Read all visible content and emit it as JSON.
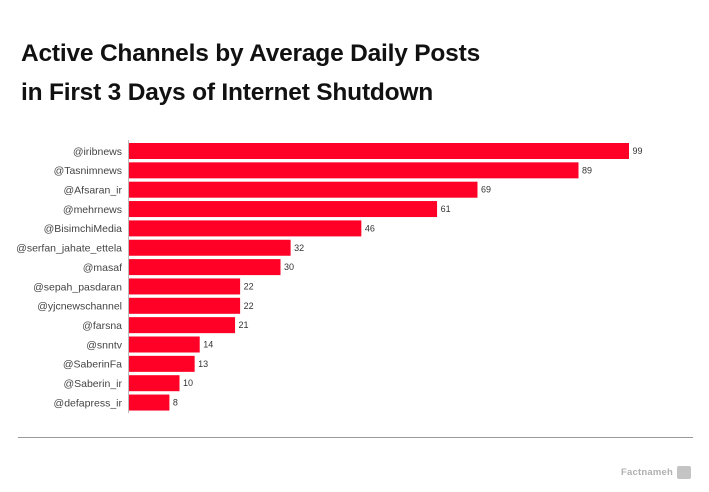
{
  "chart_data": {
    "type": "bar",
    "orientation": "horizontal",
    "title": "Active Channels by Average Daily Posts\nin First 3 Days of Internet Shutdown",
    "title_lines": [
      "Active Channels by Average Daily Posts",
      "in First 3 Days of Internet Shutdown"
    ],
    "categories": [
      "@iribnews",
      "@Tasnimnews",
      "@Afsaran_ir",
      "@mehrnews",
      "@BisimchiMedia",
      "@serfan_jahate_ettela",
      "@masaf",
      "@sepah_pasdaran",
      "@yjcnewschannel",
      "@farsna",
      "@snntv",
      "@SaberinFa",
      "@Saberin_ir",
      "@defapress_ir"
    ],
    "values": [
      99,
      89,
      69,
      61,
      46,
      32,
      30,
      22,
      22,
      21,
      14,
      13,
      10,
      8
    ],
    "xlabel": "",
    "ylabel": "",
    "xlim": [
      0,
      99
    ],
    "grid": false,
    "bar_color": "#ff0026"
  },
  "footer": {
    "brand": "Factnameh"
  }
}
